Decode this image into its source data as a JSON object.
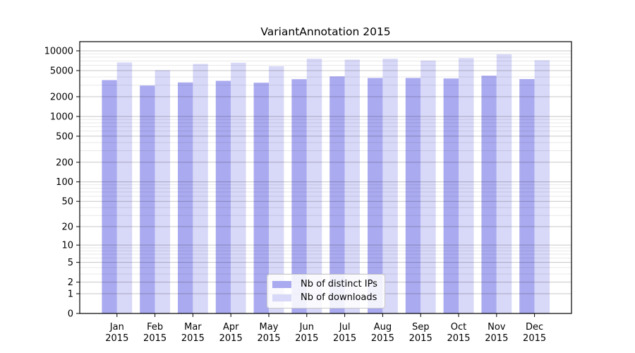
{
  "chart_data": {
    "type": "bar",
    "title": "VariantAnnotation 2015",
    "xlabel": "",
    "ylabel": "",
    "year_label": "2015",
    "categories": [
      "Jan",
      "Feb",
      "Mar",
      "Apr",
      "May",
      "Jun",
      "Jul",
      "Aug",
      "Sep",
      "Oct",
      "Nov",
      "Dec"
    ],
    "series": [
      {
        "name": "Nb of distinct IPs",
        "color": "#aaaaf0",
        "values": [
          3580,
          2960,
          3300,
          3490,
          3270,
          3700,
          4080,
          3860,
          3860,
          3790,
          4180,
          3715
        ]
      },
      {
        "name": "Nb of downloads",
        "color": "#d8d8f8",
        "values": [
          6650,
          5060,
          6320,
          6590,
          5830,
          7580,
          7340,
          7580,
          7110,
          7760,
          8870,
          7190
        ]
      }
    ],
    "y_ticks": [
      0,
      1,
      2,
      5,
      10,
      20,
      50,
      100,
      200,
      500,
      1000,
      2000,
      5000,
      10000
    ],
    "y_scale": "log1p",
    "ylim": [
      0,
      14000
    ],
    "grid": true,
    "grid_major_color": "rgba(0,0,0,0.22)",
    "grid_minor_color": "rgba(0,0,0,0.09)",
    "axis_color": "#000000",
    "background_color": "#ffffff",
    "legend_position": "bottom-center"
  }
}
